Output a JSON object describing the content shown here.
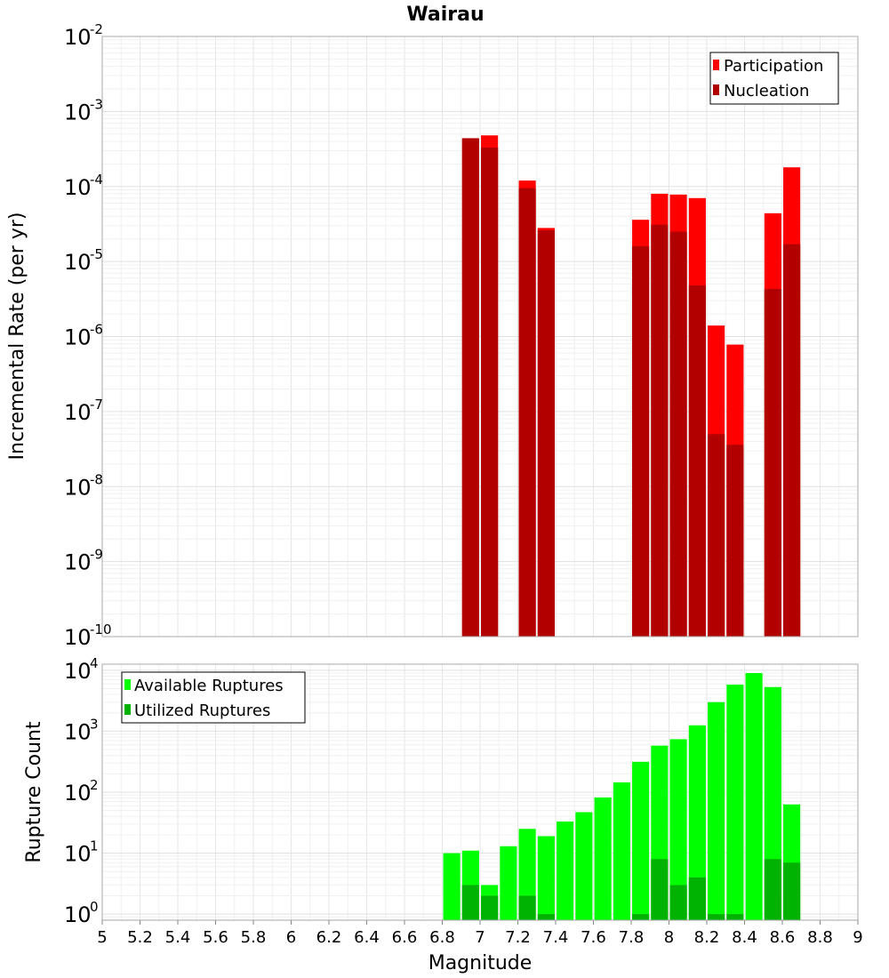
{
  "title": "Wairau",
  "chart_data": [
    {
      "type": "bar",
      "panel": "top",
      "ylabel": "Incremental Rate (per yr)",
      "yscale": "log",
      "ylim_exponents": [
        -10,
        -2
      ],
      "y_tick_base": "10",
      "y_tick_exponents": [
        "-2",
        "-3",
        "-4",
        "-5",
        "-6",
        "-7",
        "-8",
        "-9",
        "-10"
      ],
      "xlim": [
        5,
        9
      ],
      "bar_width": 0.09,
      "legend": {
        "position": "top-right",
        "entries": [
          "Participation",
          "Nucleation"
        ]
      },
      "series": [
        {
          "name": "Participation",
          "color": "#ff0000",
          "x": [
            6.95,
            7.05,
            7.25,
            7.35,
            7.85,
            7.95,
            8.05,
            8.15,
            8.25,
            8.35,
            8.55,
            8.65
          ],
          "values": [
            0.00044,
            0.00048,
            0.00012,
            2.8e-05,
            3.6e-05,
            8e-05,
            7.8e-05,
            7e-05,
            1.4e-06,
            7.8e-07,
            4.4e-05,
            0.00018
          ]
        },
        {
          "name": "Nucleation",
          "color": "#b20000",
          "x": [
            6.95,
            7.05,
            7.25,
            7.35,
            7.85,
            7.95,
            8.05,
            8.15,
            8.25,
            8.35,
            8.55,
            8.65
          ],
          "values": [
            0.00044,
            0.00033,
            9.5e-05,
            2.6e-05,
            1.6e-05,
            3.1e-05,
            2.5e-05,
            4.8e-06,
            5e-08,
            3.6e-08,
            4.3e-06,
            1.7e-05
          ]
        }
      ]
    },
    {
      "type": "bar",
      "panel": "bottom",
      "ylabel": "Rupture Count",
      "xlabel": "Magnitude",
      "yscale": "log",
      "ylim_exponents": [
        -0.1,
        4.1
      ],
      "y_tick_base": "10",
      "y_tick_exponents": [
        "4",
        "3",
        "2",
        "1",
        "0"
      ],
      "xlim": [
        5,
        9
      ],
      "x_ticks": [
        "5",
        "5.2",
        "5.4",
        "5.6",
        "5.8",
        "6",
        "6.2",
        "6.4",
        "6.6",
        "6.8",
        "7",
        "7.2",
        "7.4",
        "7.6",
        "7.8",
        "8",
        "8.2",
        "8.4",
        "8.6",
        "8.8",
        "9"
      ],
      "bar_width": 0.09,
      "legend": {
        "position": "top-left",
        "entries": [
          "Available Ruptures",
          "Utilized Ruptures"
        ]
      },
      "series": [
        {
          "name": "Available Ruptures",
          "color": "#00ff00",
          "x": [
            6.85,
            6.95,
            7.05,
            7.15,
            7.25,
            7.35,
            7.45,
            7.55,
            7.65,
            7.75,
            7.85,
            7.95,
            8.05,
            8.15,
            8.25,
            8.35,
            8.45,
            8.55,
            8.65
          ],
          "values": [
            10,
            11,
            3,
            13,
            25,
            19,
            33,
            47,
            82,
            145,
            315,
            580,
            740,
            1250,
            3000,
            5800,
            9000,
            5300,
            63
          ]
        },
        {
          "name": "Utilized Ruptures",
          "color": "#00b200",
          "x": [
            6.95,
            7.05,
            7.25,
            7.35,
            7.85,
            7.95,
            8.05,
            8.15,
            8.25,
            8.35,
            8.55,
            8.65
          ],
          "values": [
            3,
            2,
            2,
            1,
            1,
            8,
            3,
            4,
            1,
            1,
            8,
            7
          ]
        }
      ]
    }
  ]
}
